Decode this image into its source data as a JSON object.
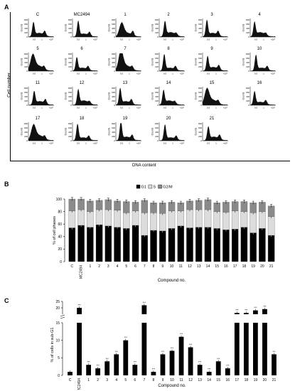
{
  "panels": {
    "a": "A",
    "b": "B",
    "c": "C"
  },
  "histograms": {
    "ylabel_outer": "Cell number",
    "xlabel_outer": "DNA content",
    "axis_counts": "Counts",
    "yticks": [
      "800",
      "600",
      "400",
      "200",
      "0"
    ],
    "xticks": [
      "0.5",
      "1",
      "×10⁶"
    ],
    "titles": [
      "C",
      "MC2494",
      "1",
      "2",
      "3",
      "4",
      "5",
      "6",
      "7",
      "8",
      "9",
      "10",
      "11",
      "12",
      "13",
      "14",
      "15",
      "16",
      "17",
      "18",
      "19",
      "20",
      "21"
    ],
    "colors": {
      "fill": "#111111"
    }
  },
  "chart_data": [
    {
      "type": "bar",
      "stacked": true,
      "categories": [
        "C",
        "MC2494",
        "1",
        "2",
        "3",
        "4",
        "5",
        "6",
        "7",
        "8",
        "9",
        "10",
        "11",
        "12",
        "13",
        "14",
        "15",
        "16",
        "17",
        "18",
        "19",
        "20",
        "21"
      ],
      "series": [
        {
          "name": "G1",
          "color": "#000000",
          "values": [
            54,
            58,
            55,
            59,
            57,
            55,
            53,
            58,
            42,
            50,
            49,
            53,
            57,
            54,
            55,
            55,
            53,
            51,
            52,
            55,
            46,
            53,
            42
          ]
        },
        {
          "name": "S",
          "color": "#dcdcdc",
          "values": [
            27,
            25,
            25,
            24,
            26,
            27,
            25,
            23,
            36,
            28,
            28,
            28,
            24,
            29,
            28,
            28,
            27,
            28,
            29,
            25,
            32,
            27,
            30
          ]
        },
        {
          "name": "G2/M",
          "color": "#8a8a8a",
          "values": [
            19,
            17,
            17,
            15,
            16,
            15,
            18,
            14,
            20,
            16,
            17,
            14,
            13,
            14,
            15,
            16,
            14,
            16,
            15,
            16,
            16,
            15,
            17
          ]
        }
      ],
      "xlabel": "Compound no.",
      "ylabel": "% of cell phases",
      "yticks": [
        "0",
        "20",
        "40",
        "60",
        "80",
        "100"
      ],
      "ylim": [
        0,
        100
      ],
      "legend": "top-center"
    },
    {
      "type": "bar",
      "categories": [
        "C",
        "MC2494",
        "1",
        "2",
        "3",
        "4",
        "5",
        "6",
        "7",
        "8",
        "9",
        "10",
        "11",
        "12",
        "13",
        "14",
        "15",
        "16",
        "17",
        "18",
        "19",
        "20",
        "21"
      ],
      "values": [
        1,
        20,
        3,
        2,
        4,
        6,
        10,
        3,
        22,
        1,
        6,
        7,
        11,
        8,
        3,
        1,
        4,
        2,
        16,
        16,
        18,
        19,
        6
      ],
      "broken_axis": {
        "lower": [
          0,
          15
        ],
        "upper": [
          15,
          25
        ]
      },
      "annotation": "***",
      "xlabel": "Compound no.",
      "ylabel": "% of cells in sub-G1",
      "yticks_lower": [
        "0",
        "5",
        "10",
        "15"
      ],
      "yticks_upper": [
        "20",
        "25"
      ],
      "colors": {
        "bar": "#000000"
      }
    }
  ]
}
